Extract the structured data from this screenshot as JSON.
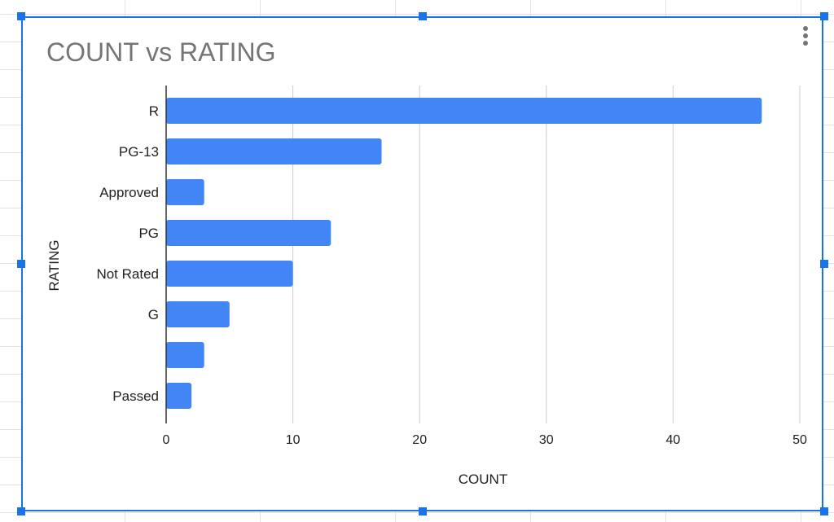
{
  "chart_data": {
    "type": "bar",
    "orientation": "horizontal",
    "title": "COUNT vs RATING",
    "xlabel": "COUNT",
    "ylabel": "RATING",
    "categories": [
      "R",
      "PG-13",
      "Approved",
      "PG",
      "Not Rated",
      "G",
      "",
      "Passed"
    ],
    "values": [
      47,
      17,
      3,
      13,
      10,
      5,
      3,
      2
    ],
    "xlim": [
      0,
      50
    ],
    "xticks": [
      "0",
      "10",
      "20",
      "30",
      "40",
      "50"
    ],
    "grid": true,
    "legend": "none",
    "bar_color": "#4285f4"
  }
}
